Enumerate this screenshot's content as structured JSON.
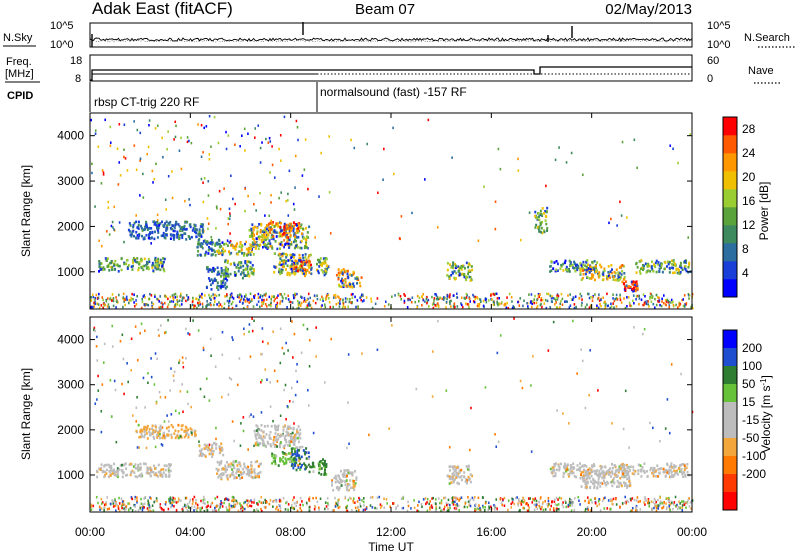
{
  "header": {
    "station": "Adak East (fitACF)",
    "beam": "Beam 07",
    "date": "02/May/2013"
  },
  "top_panels": {
    "nsky_label": "N.Sky",
    "nsearch_label": "N.Search",
    "noise_ticks": [
      "10^5",
      "10^0"
    ],
    "freq_label": "Freq.",
    "freq_unit": "[MHz]",
    "freq_ticks": [
      "18",
      "8"
    ],
    "nave_label": "Nave",
    "nave_ticks": [
      "60",
      "0"
    ],
    "cpid_label": "CPID",
    "cpid_segments": [
      "rbsp CT-trig 220 RF",
      "normalsound (fast) -157 RF"
    ]
  },
  "x_axis": {
    "label": "Time UT",
    "ticks": [
      "00:00",
      "04:00",
      "08:00",
      "12:00",
      "16:00",
      "20:00",
      "00:00"
    ]
  },
  "chart_data": [
    {
      "type": "heatmap",
      "quantity": "power",
      "ylabel": "Slant Range [km]",
      "yticks": [
        1000,
        2000,
        3000,
        4000
      ],
      "ylim": [
        180,
        4500
      ],
      "xlim_hours": [
        0,
        24
      ],
      "colorbar": {
        "label": "Power [dB]",
        "ticks": [
          4,
          8,
          12,
          16,
          20,
          24,
          28
        ],
        "range": [
          0,
          30
        ],
        "colors": [
          "#0000ff",
          "#1a3fd8",
          "#2d6ea0",
          "#3c8a5e",
          "#5aa23a",
          "#9acd32",
          "#f0c000",
          "#ff9800",
          "#ff5a00",
          "#ff0000"
        ]
      },
      "regions": [
        {
          "t0": 0.3,
          "t1": 3.0,
          "r0": 1000,
          "r1": 1300,
          "level": 14
        },
        {
          "t0": 1.5,
          "t1": 4.5,
          "r0": 1700,
          "r1": 2100,
          "level": 8
        },
        {
          "t0": 4.2,
          "t1": 5.2,
          "r0": 1350,
          "r1": 1700,
          "level": 10
        },
        {
          "t0": 4.6,
          "t1": 5.5,
          "r0": 600,
          "r1": 1100,
          "level": 10
        },
        {
          "t0": 5.0,
          "t1": 6.5,
          "r0": 1350,
          "r1": 1650,
          "level": 18
        },
        {
          "t0": 5.3,
          "t1": 6.5,
          "r0": 850,
          "r1": 1250,
          "level": 14
        },
        {
          "t0": 6.3,
          "t1": 8.7,
          "r0": 1500,
          "r1": 2050,
          "level": 18
        },
        {
          "t0": 7.0,
          "t1": 8.3,
          "r0": 1750,
          "r1": 2100,
          "level": 24
        },
        {
          "t0": 7.3,
          "t1": 8.8,
          "r0": 900,
          "r1": 1400,
          "level": 18
        },
        {
          "t0": 8.0,
          "t1": 8.8,
          "r0": 1000,
          "r1": 1250,
          "level": 24
        },
        {
          "t0": 9.0,
          "t1": 9.5,
          "r0": 900,
          "r1": 1300,
          "level": 16
        },
        {
          "t0": 9.8,
          "t1": 10.8,
          "r0": 650,
          "r1": 1050,
          "level": 22
        },
        {
          "t0": 14.2,
          "t1": 15.2,
          "r0": 800,
          "r1": 1200,
          "level": 16
        },
        {
          "t0": 17.7,
          "t1": 18.2,
          "r0": 1850,
          "r1": 2400,
          "level": 14
        },
        {
          "t0": 18.3,
          "t1": 20.2,
          "r0": 1000,
          "r1": 1250,
          "level": 14
        },
        {
          "t0": 19.5,
          "t1": 21.3,
          "r0": 800,
          "r1": 1150,
          "level": 20
        },
        {
          "t0": 21.1,
          "t1": 21.8,
          "r0": 550,
          "r1": 800,
          "level": 28
        },
        {
          "t0": 21.7,
          "t1": 23.9,
          "r0": 950,
          "r1": 1250,
          "level": 16
        }
      ]
    },
    {
      "type": "heatmap",
      "quantity": "velocity",
      "ylabel": "Slant Range [km]",
      "yticks": [
        1000,
        2000,
        3000,
        4000
      ],
      "ylim": [
        180,
        4500
      ],
      "xlim_hours": [
        0,
        24
      ],
      "colorbar": {
        "label": "Velocity [m s^-1]",
        "ticks": [
          200,
          100,
          50,
          15,
          -15,
          -50,
          -100,
          -200
        ],
        "range": [
          -250,
          250
        ],
        "colors": [
          "#0000ff",
          "#1f4fd0",
          "#2e7d32",
          "#67c23a",
          "#bdbdbd",
          "#bdbdbd",
          "#f3a73b",
          "#ff7a00",
          "#ff3a00",
          "#ff0000"
        ]
      },
      "regions": [
        {
          "t0": 0.2,
          "t1": 3.2,
          "r0": 950,
          "r1": 1250,
          "level": 0
        },
        {
          "t0": 1.8,
          "t1": 4.2,
          "r0": 1800,
          "r1": 2100,
          "level": -20
        },
        {
          "t0": 4.3,
          "t1": 5.3,
          "r0": 1400,
          "r1": 1700,
          "level": 0
        },
        {
          "t0": 5.0,
          "t1": 6.8,
          "r0": 900,
          "r1": 1300,
          "level": 0
        },
        {
          "t0": 6.5,
          "t1": 8.4,
          "r0": 1600,
          "r1": 2100,
          "level": 0
        },
        {
          "t0": 7.2,
          "t1": 8.2,
          "r0": 1200,
          "r1": 1500,
          "level": 60
        },
        {
          "t0": 8.0,
          "t1": 8.7,
          "r0": 1100,
          "r1": 1600,
          "level": 150
        },
        {
          "t0": 8.7,
          "t1": 9.4,
          "r0": 1000,
          "r1": 1350,
          "level": 80
        },
        {
          "t0": 9.6,
          "t1": 10.6,
          "r0": 650,
          "r1": 1100,
          "level": 0
        },
        {
          "t0": 14.2,
          "t1": 15.2,
          "r0": 800,
          "r1": 1200,
          "level": 0
        },
        {
          "t0": 18.3,
          "t1": 23.9,
          "r0": 950,
          "r1": 1250,
          "level": 0
        },
        {
          "t0": 19.5,
          "t1": 21.5,
          "r0": 700,
          "r1": 1100,
          "level": 0
        }
      ]
    }
  ]
}
